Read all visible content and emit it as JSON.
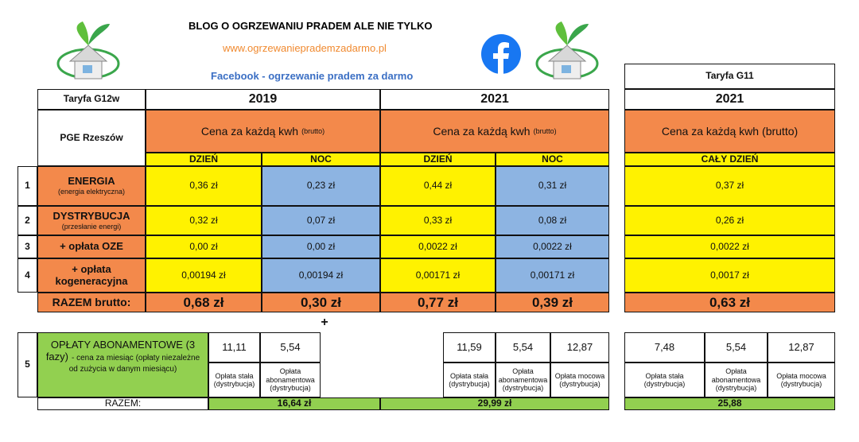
{
  "header": {
    "title": "BLOG O OGRZEWANIU PRADEM ALE NIE TYLKO",
    "url": "www.ogrzewanieprademzadarmo.pl",
    "facebook": "Facebook - ogrzewanie pradem za darmo"
  },
  "table": {
    "tariff": "Taryfa G12w",
    "tariff_g11": "Taryfa G11",
    "operator": "PGE Rzeszów",
    "years": [
      "2019",
      "2021",
      "2021"
    ],
    "price_label": "Cena za każdą kwh",
    "price_note": "(brutto)",
    "periods": [
      "DZIEŃ",
      "NOC",
      "DZIEŃ",
      "NOC",
      "CAŁY DZIEŃ"
    ],
    "rows": [
      {
        "number": "1",
        "label": "ENERGIA",
        "sublabel": "(energia elektryczna)",
        "values": [
          "0,36 zł",
          "0,23 zł",
          "0,44 zł",
          "0,31 zł",
          "0,37 zł"
        ]
      },
      {
        "number": "2",
        "label": "DYSTRYBUCJA",
        "sublabel": "(przesłanie energi)",
        "values": [
          "0,32 zł",
          "0,07 zł",
          "0,33 zł",
          "0,08 zł",
          "0,26 zł"
        ]
      },
      {
        "number": "3",
        "label": "+ opłata OZE",
        "values": [
          "0,00 zł",
          "0,00 zł",
          "0,0022 zł",
          "0,0022 zł",
          "0,0022 zł"
        ]
      },
      {
        "number": "4",
        "label": "+ opłata kogeneracyjna",
        "values": [
          "0,00194 zł",
          "0,00194 zł",
          "0,00171 zł",
          "0,00171 zł",
          "0,0017 zł"
        ]
      }
    ],
    "total": {
      "label": "RAZEM brutto:",
      "values": [
        "0,68 zł",
        "0,30 zł",
        "0,77 zł",
        "0,39 zł",
        "0,63 zł"
      ]
    },
    "plus": "+"
  },
  "fees": {
    "number": "5",
    "label": "OPŁATY ABONAMENTOWE (3 fazy)",
    "note": "- cena za miesiąc (opłaty niezależne od zużycia w danym miesiącu)",
    "groups": [
      {
        "values": [
          "11,11",
          "5,54"
        ],
        "descriptions": [
          "Opłata stała (dystrybucja)",
          "Opłata abonamentowa (dystrybucja)"
        ]
      },
      {
        "values": [
          "11,59",
          "5,54",
          "12,87"
        ],
        "descriptions": [
          "Opłata stała (dystrybucja)",
          "Opłata abonamentowa (dystrybucja)",
          "Opłata mocowa (dystrybucja)"
        ]
      },
      {
        "values": [
          "7,48",
          "5,54",
          "12,87"
        ],
        "descriptions": [
          "Opłata stała (dystrybucja)",
          "Opłata abonamentowa (dystrybucja)",
          "Opłata mocowa (dystrybucja)"
        ]
      }
    ],
    "total_label": "RAZEM:",
    "totals": [
      "16,64 zł",
      "29,99 zł",
      "25,88"
    ]
  }
}
